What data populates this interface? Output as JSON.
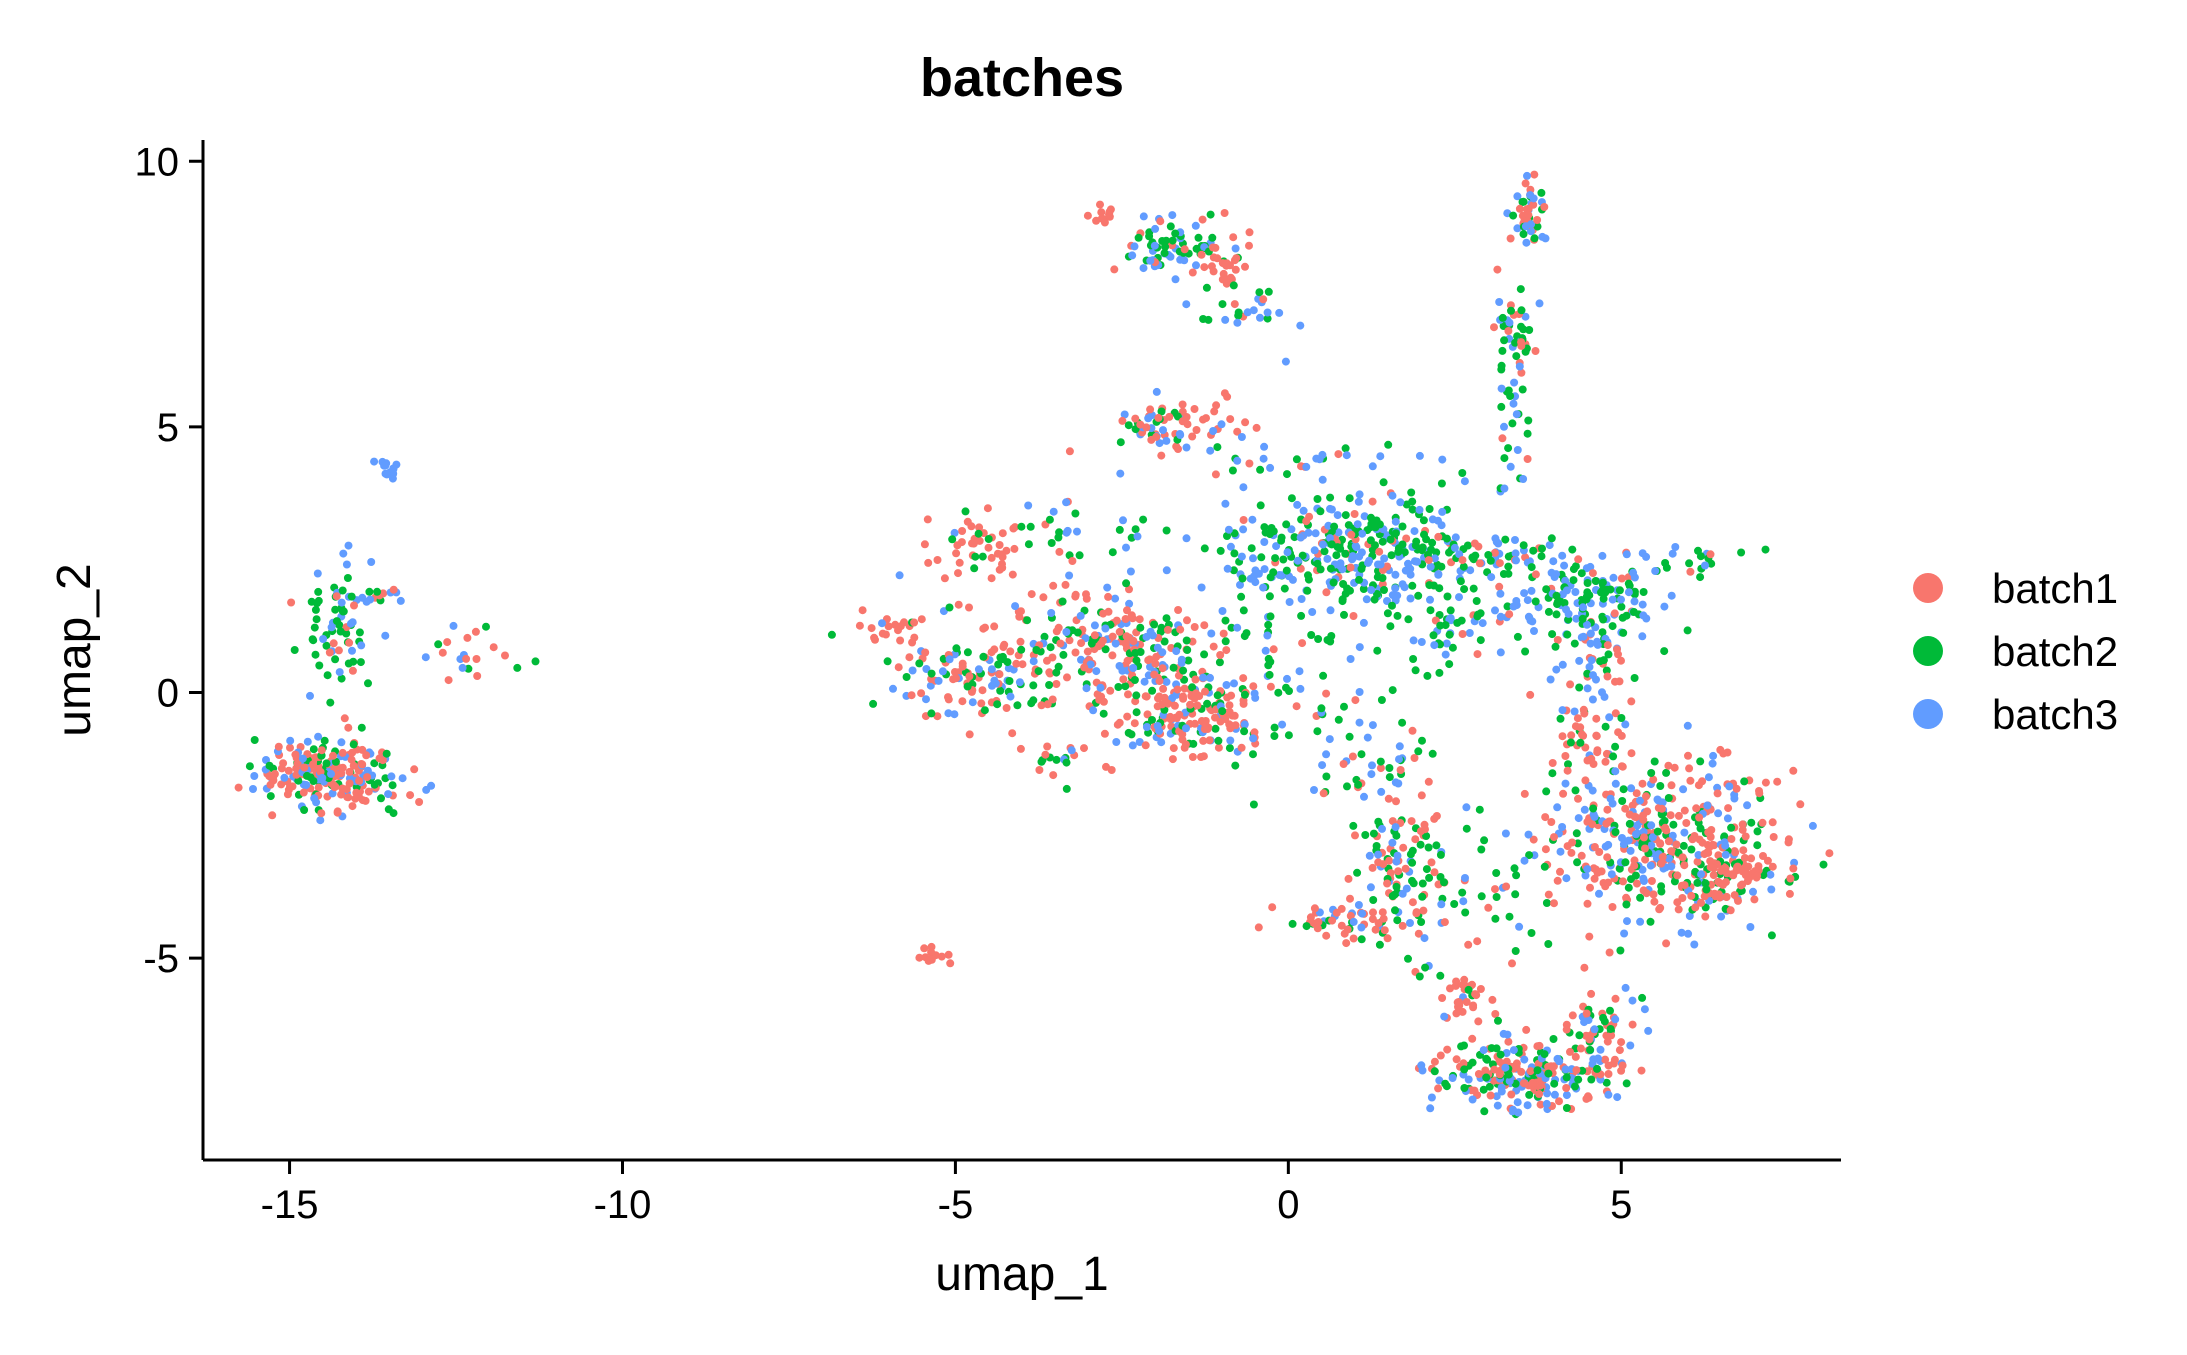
{
  "chart_data": {
    "type": "scatter",
    "title": "batches",
    "xlabel": "umap_1",
    "ylabel": "umap_2",
    "xlim": [
      -16.3,
      8.3
    ],
    "ylim": [
      -8.8,
      10.4
    ],
    "xticks": [
      -15,
      -10,
      -5,
      0,
      5
    ],
    "yticks": [
      -5,
      0,
      5,
      10
    ],
    "xtick_labels": [
      "-15",
      "-10",
      "-5",
      "0",
      "5"
    ],
    "ytick_labels": [
      "-5",
      "0",
      "5",
      "10"
    ],
    "grid": false,
    "legend_position": "right",
    "series": [
      {
        "name": "batch1",
        "color": "#F8766D"
      },
      {
        "name": "batch2",
        "color": "#00BA38"
      },
      {
        "name": "batch3",
        "color": "#619CFF"
      }
    ],
    "clusters": [
      {
        "cx": -14.4,
        "cy": -1.5,
        "sx": 0.55,
        "sy": 0.35,
        "n": 220,
        "w": [
          0.55,
          0.2,
          0.25
        ]
      },
      {
        "cx": -14.2,
        "cy": 1.2,
        "sx": 0.25,
        "sy": 0.6,
        "n": 60,
        "w": [
          0.2,
          0.5,
          0.3
        ]
      },
      {
        "cx": -13.9,
        "cy": 1.8,
        "sx": 0.35,
        "sy": 0.1,
        "n": 25,
        "w": [
          0.3,
          0.4,
          0.3
        ]
      },
      {
        "cx": -13.5,
        "cy": 4.2,
        "sx": 0.08,
        "sy": 0.1,
        "n": 15,
        "w": [
          0,
          0,
          1
        ]
      },
      {
        "cx": -12.2,
        "cy": 0.7,
        "sx": 0.5,
        "sy": 0.2,
        "n": 20,
        "w": [
          0.4,
          0.3,
          0.3
        ]
      },
      {
        "cx": -6.1,
        "cy": 1.2,
        "sx": 0.3,
        "sy": 0.1,
        "n": 20,
        "w": [
          0.5,
          0.3,
          0.2
        ]
      },
      {
        "cx": -5.3,
        "cy": -5.0,
        "sx": 0.15,
        "sy": 0.1,
        "n": 12,
        "w": [
          0.8,
          0.2,
          0
        ]
      },
      {
        "cx": -4.8,
        "cy": 2.7,
        "sx": 0.6,
        "sy": 0.4,
        "n": 40,
        "w": [
          0.9,
          0.05,
          0.05
        ]
      },
      {
        "cx": -4.7,
        "cy": 0.3,
        "sx": 0.6,
        "sy": 0.45,
        "n": 120,
        "w": [
          0.5,
          0.25,
          0.25
        ]
      },
      {
        "cx": -2.6,
        "cy": 0.8,
        "sx": 0.9,
        "sy": 0.6,
        "n": 260,
        "w": [
          0.5,
          0.25,
          0.25
        ]
      },
      {
        "cx": -1.4,
        "cy": -0.4,
        "sx": 0.55,
        "sy": 0.4,
        "n": 160,
        "w": [
          0.6,
          0.2,
          0.2
        ]
      },
      {
        "cx": -3.3,
        "cy": -1.3,
        "sx": 0.4,
        "sy": 0.3,
        "n": 20,
        "w": [
          0.5,
          0.3,
          0.2
        ]
      },
      {
        "cx": -3.2,
        "cy": 3.0,
        "sx": 0.8,
        "sy": 0.35,
        "n": 40,
        "w": [
          0.2,
          0.5,
          0.3
        ]
      },
      {
        "cx": -2.8,
        "cy": 9.0,
        "sx": 0.1,
        "sy": 0.08,
        "n": 12,
        "w": [
          1,
          0,
          0
        ]
      },
      {
        "cx": -1.8,
        "cy": 8.4,
        "sx": 0.35,
        "sy": 0.25,
        "n": 60,
        "w": [
          0.2,
          0.5,
          0.3
        ]
      },
      {
        "cx": -1.0,
        "cy": 8.1,
        "sx": 0.25,
        "sy": 0.4,
        "n": 40,
        "w": [
          0.8,
          0.1,
          0.1
        ]
      },
      {
        "cx": -0.6,
        "cy": 7.0,
        "sx": 0.4,
        "sy": 0.3,
        "n": 20,
        "w": [
          0.2,
          0.3,
          0.5
        ]
      },
      {
        "cx": -1.8,
        "cy": 5.0,
        "sx": 0.5,
        "sy": 0.25,
        "n": 70,
        "w": [
          0.5,
          0.15,
          0.35
        ]
      },
      {
        "cx": 0.3,
        "cy": 4.4,
        "sx": 0.7,
        "sy": 0.2,
        "n": 25,
        "w": [
          0.3,
          0.3,
          0.4
        ]
      },
      {
        "cx": 1.0,
        "cy": 2.6,
        "sx": 0.9,
        "sy": 0.55,
        "n": 320,
        "w": [
          0.1,
          0.5,
          0.4
        ]
      },
      {
        "cx": 2.4,
        "cy": 1.3,
        "sx": 0.4,
        "sy": 0.4,
        "n": 50,
        "w": [
          0.1,
          0.6,
          0.3
        ]
      },
      {
        "cx": 4.4,
        "cy": 1.7,
        "sx": 0.7,
        "sy": 0.55,
        "n": 170,
        "w": [
          0.1,
          0.45,
          0.45
        ]
      },
      {
        "cx": 3.0,
        "cy": 2.6,
        "sx": 0.8,
        "sy": 0.2,
        "n": 50,
        "w": [
          0.1,
          0.5,
          0.4
        ]
      },
      {
        "cx": 6.0,
        "cy": 2.5,
        "sx": 0.4,
        "sy": 0.15,
        "n": 20,
        "w": [
          0.1,
          0.5,
          0.4
        ]
      },
      {
        "cx": -0.3,
        "cy": 2.9,
        "sx": 0.6,
        "sy": 0.5,
        "n": 30,
        "w": [
          0.1,
          0.5,
          0.4
        ]
      },
      {
        "cx": 4.6,
        "cy": 0.5,
        "sx": 0.2,
        "sy": 0.6,
        "n": 30,
        "w": [
          0.3,
          0.3,
          0.4
        ]
      },
      {
        "cx": 4.5,
        "cy": -1.0,
        "sx": 0.4,
        "sy": 0.6,
        "n": 60,
        "w": [
          0.75,
          0.1,
          0.15
        ]
      },
      {
        "cx": 5.6,
        "cy": -2.9,
        "sx": 0.95,
        "sy": 0.75,
        "n": 420,
        "w": [
          0.45,
          0.3,
          0.25
        ]
      },
      {
        "cx": 6.5,
        "cy": -3.5,
        "sx": 0.35,
        "sy": 0.35,
        "n": 80,
        "w": [
          0.8,
          0.1,
          0.1
        ]
      },
      {
        "cx": 1.4,
        "cy": -1.6,
        "sx": 0.5,
        "sy": 0.5,
        "n": 40,
        "w": [
          0.3,
          0.4,
          0.3
        ]
      },
      {
        "cx": 1.7,
        "cy": -3.4,
        "sx": 0.35,
        "sy": 0.7,
        "n": 110,
        "w": [
          0.4,
          0.4,
          0.2
        ]
      },
      {
        "cx": 0.8,
        "cy": -4.3,
        "sx": 0.45,
        "sy": 0.15,
        "n": 45,
        "w": [
          0.5,
          0.3,
          0.2
        ]
      },
      {
        "cx": 2.6,
        "cy": -5.8,
        "sx": 0.2,
        "sy": 0.35,
        "n": 35,
        "w": [
          0.8,
          0.1,
          0.1
        ]
      },
      {
        "cx": 3.6,
        "cy": -7.2,
        "sx": 0.65,
        "sy": 0.35,
        "n": 230,
        "w": [
          0.45,
          0.25,
          0.3
        ]
      },
      {
        "cx": 4.7,
        "cy": -6.4,
        "sx": 0.3,
        "sy": 0.4,
        "n": 60,
        "w": [
          0.4,
          0.3,
          0.3
        ]
      },
      {
        "cx": 3.4,
        "cy": 4.8,
        "sx": 0.15,
        "sy": 0.5,
        "n": 20,
        "w": [
          0.1,
          0.4,
          0.5
        ]
      },
      {
        "cx": 3.4,
        "cy": 6.7,
        "sx": 0.15,
        "sy": 0.5,
        "n": 50,
        "w": [
          0.2,
          0.5,
          0.3
        ]
      },
      {
        "cx": 3.6,
        "cy": 9.0,
        "sx": 0.1,
        "sy": 0.3,
        "n": 45,
        "w": [
          0.5,
          0.2,
          0.3
        ]
      },
      {
        "cx": 3.0,
        "cy": -4.2,
        "sx": 0.6,
        "sy": 0.4,
        "n": 25,
        "w": [
          0.3,
          0.5,
          0.2
        ]
      },
      {
        "cx": 0.5,
        "cy": -0.5,
        "sx": 0.6,
        "sy": 0.6,
        "n": 35,
        "w": [
          0.1,
          0.6,
          0.3
        ]
      },
      {
        "cx": -0.2,
        "cy": 0.5,
        "sx": 0.6,
        "sy": 0.8,
        "n": 25,
        "w": [
          0.1,
          0.5,
          0.4
        ]
      }
    ]
  }
}
